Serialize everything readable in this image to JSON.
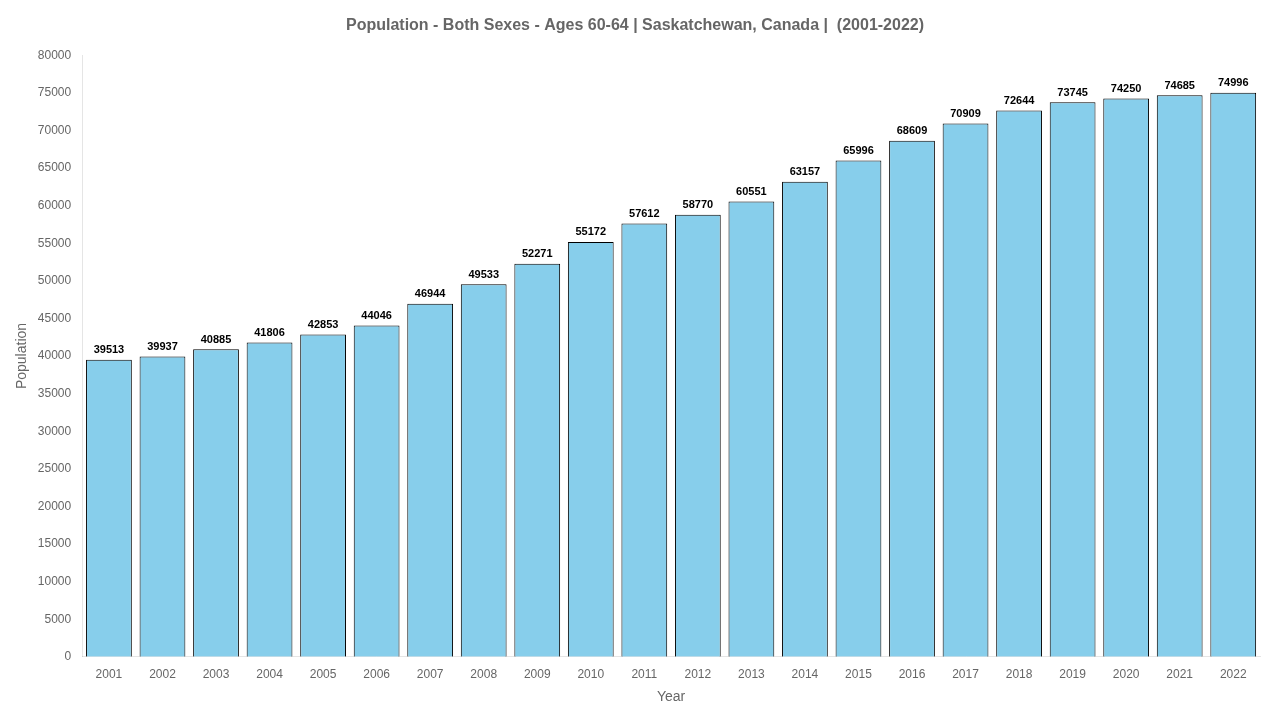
{
  "chart_data": {
    "type": "bar",
    "title": "Population - Both Sexes - Ages 60-64 | Saskatchewan, Canada |  (2001-2022)",
    "x_label": "Year",
    "y_label": "Population",
    "categories": [
      "2001",
      "2002",
      "2003",
      "2004",
      "2005",
      "2006",
      "2007",
      "2008",
      "2009",
      "2010",
      "2011",
      "2012",
      "2013",
      "2014",
      "2015",
      "2016",
      "2017",
      "2018",
      "2019",
      "2020",
      "2021",
      "2022"
    ],
    "values": [
      39513,
      39937,
      40885,
      41806,
      42853,
      44046,
      46944,
      49533,
      52271,
      55172,
      57612,
      58770,
      60551,
      63157,
      65996,
      68609,
      70909,
      72644,
      73745,
      74250,
      74685,
      74996
    ],
    "color": "#87ceeb",
    "ylim": [
      0,
      80000
    ],
    "yticks": [
      0,
      5000,
      10000,
      15000,
      20000,
      25000,
      30000,
      35000,
      40000,
      45000,
      50000,
      55000,
      60000,
      65000,
      70000,
      75000,
      80000
    ],
    "grid": false,
    "data_labels": true
  }
}
